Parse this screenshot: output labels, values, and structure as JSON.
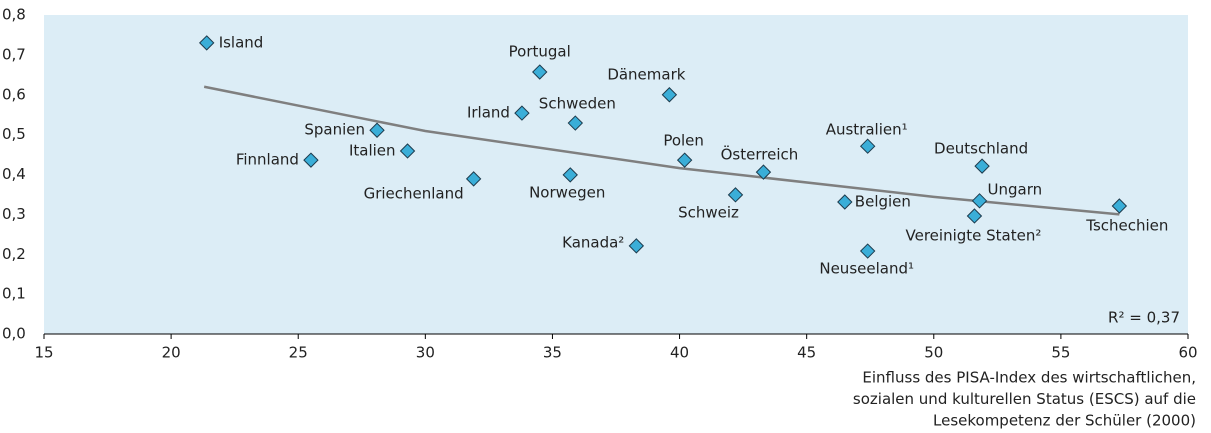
{
  "chart_data": {
    "type": "scatter",
    "labels": [
      "Island",
      "Portugal",
      "Irland",
      "Schweden",
      "Dänemark",
      "Spanien",
      "Italien",
      "Finnland",
      "Griechenland",
      "Norwegen",
      "Polen",
      "Österreich",
      "Schweiz",
      "Australien¹",
      "Deutschland",
      "Ungarn",
      "Belgien",
      "Vereinigte Staten²",
      "Tschechien",
      "Kanada²",
      "Neuseeland¹"
    ],
    "x": [
      21.4,
      34.5,
      33.8,
      35.9,
      39.6,
      28.1,
      29.3,
      25.5,
      31.9,
      35.7,
      40.2,
      43.3,
      42.2,
      47.4,
      51.9,
      51.8,
      46.5,
      51.6,
      57.3,
      38.3,
      47.4
    ],
    "y": [
      0.73,
      0.657,
      0.554,
      0.529,
      0.6,
      0.511,
      0.459,
      0.436,
      0.389,
      0.399,
      0.436,
      0.406,
      0.349,
      0.471,
      0.421,
      0.334,
      0.331,
      0.296,
      0.321,
      0.221,
      0.208
    ],
    "color": "#3aaed8",
    "trend": {
      "x": [
        21.3,
        30,
        40,
        50,
        57.3
      ],
      "y": [
        0.62,
        0.509,
        0.416,
        0.344,
        0.3
      ],
      "color": "#7f7f7f"
    },
    "annotation": "R² = 0,37",
    "x_label": [
      "Einfluss des PISA-Index des wirtschaftlichen,",
      "sozialen und kulturellen Status (ESCS) auf die",
      "Lesekompetenz der Schüler (2000)"
    ],
    "xlim": [
      15,
      60
    ],
    "xticks": [
      15,
      20,
      25,
      30,
      35,
      40,
      45,
      50,
      55,
      60
    ],
    "ylim": [
      0,
      0.8
    ],
    "yticks": [
      {
        "value": 0,
        "label": "0,0"
      },
      {
        "value": 0.1,
        "label": "0,1"
      },
      {
        "value": 0.2,
        "label": "0,2"
      },
      {
        "value": 0.3,
        "label": "0,3"
      },
      {
        "value": 0.4,
        "label": "0,4"
      },
      {
        "value": 0.5,
        "label": "0,5"
      },
      {
        "value": 0.6,
        "label": "0,6"
      },
      {
        "value": 0.7,
        "label": "0,7"
      },
      {
        "value": 0.8,
        "label": "0,8"
      }
    ],
    "background": "#dcedf6"
  }
}
